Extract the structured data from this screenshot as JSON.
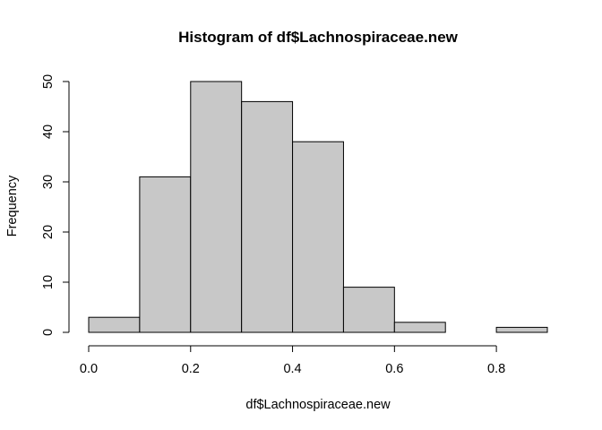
{
  "chart_data": {
    "type": "bar",
    "title": "Histogram of df$Lachnospiraceae.new",
    "xlabel": "df$Lachnospiraceae.new",
    "ylabel": "Frequency",
    "bins": [
      {
        "x0": 0.0,
        "x1": 0.1,
        "count": 3
      },
      {
        "x0": 0.1,
        "x1": 0.2,
        "count": 31
      },
      {
        "x0": 0.2,
        "x1": 0.3,
        "count": 50
      },
      {
        "x0": 0.3,
        "x1": 0.4,
        "count": 46
      },
      {
        "x0": 0.4,
        "x1": 0.5,
        "count": 38
      },
      {
        "x0": 0.5,
        "x1": 0.6,
        "count": 9
      },
      {
        "x0": 0.6,
        "x1": 0.7,
        "count": 2
      },
      {
        "x0": 0.7,
        "x1": 0.8,
        "count": 0
      },
      {
        "x0": 0.8,
        "x1": 0.9,
        "count": 1
      }
    ],
    "xticks": [
      0.0,
      0.2,
      0.4,
      0.6,
      0.8
    ],
    "xtick_labels": [
      "0.0",
      "0.2",
      "0.4",
      "0.6",
      "0.8"
    ],
    "yticks": [
      0,
      10,
      20,
      30,
      40,
      50
    ],
    "ytick_labels": [
      "0",
      "10",
      "20",
      "30",
      "40",
      "50"
    ],
    "xlim": [
      0.0,
      0.9
    ],
    "ylim": [
      0,
      50
    ],
    "grid": false,
    "bar_fill": "#c8c8c8",
    "bar_stroke": "#000000"
  }
}
